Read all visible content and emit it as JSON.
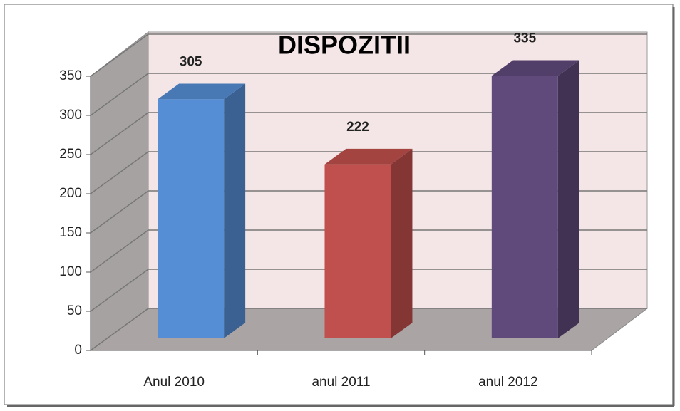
{
  "chart_data": {
    "type": "bar",
    "title": "DISPOZITII",
    "categories": [
      "Anul 2010",
      "anul 2011",
      "anul 2012"
    ],
    "values": [
      305,
      222,
      335
    ],
    "colors": [
      "#558ed5",
      "#c0504d",
      "#604a7b"
    ],
    "ylim": [
      0,
      350
    ],
    "yticks": [
      0,
      50,
      100,
      150,
      200,
      250,
      300,
      350
    ],
    "grid": true
  }
}
